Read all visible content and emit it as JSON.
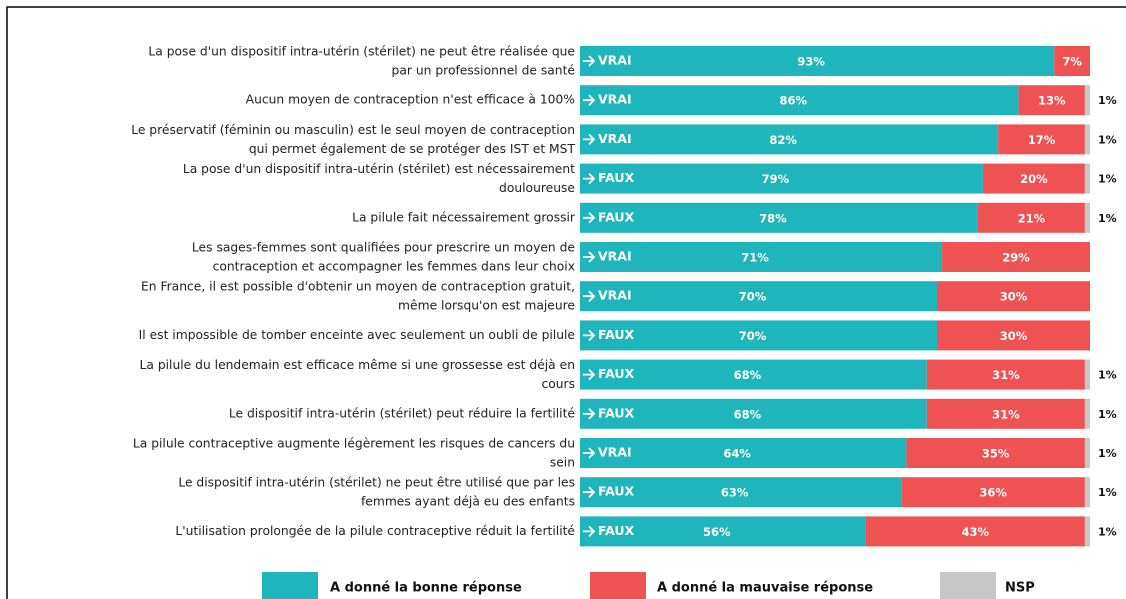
{
  "chart_data": {
    "type": "stacked-bar-horizontal",
    "categories": [
      [
        "La pose d'un dispositif intra-utérin (stérilet) ne peut être réalisée que",
        "par un professionnel de santé"
      ],
      [
        "Aucun moyen de contraception n'est efficace à 100%"
      ],
      [
        "Le préservatif (féminin ou masculin) est le seul moyen de contraception",
        "qui permet également de se protéger des IST et MST"
      ],
      [
        "La pose d'un dispositif intra-utérin (stérilet) est nécessairement",
        "douloureuse"
      ],
      [
        "La pilule fait nécessairement grossir"
      ],
      [
        "Les sages-femmes sont qualifiées pour prescrire un moyen de",
        "contraception et accompagner les femmes dans leur choix"
      ],
      [
        "En France, il est possible d'obtenir un moyen de contraception gratuit,",
        "même lorsqu'on est majeure"
      ],
      [
        "Il est impossible de tomber enceinte avec seulement un oubli de pilule"
      ],
      [
        "La pilule du lendemain est efficace même si une grossesse est déjà en",
        "cours"
      ],
      [
        "Le dispositif intra-utérin (stérilet) peut réduire la fertilité"
      ],
      [
        "La pilule contraceptive augmente légèrement les risques de cancers du",
        "sein"
      ],
      [
        "Le dispositif intra-utérin (stérilet) ne peut être utilisé que par les",
        "femmes ayant déjà eu des enfants"
      ],
      [
        "L'utilisation prolongée de la pilule contraceptive réduit la fertilité"
      ]
    ],
    "answers": [
      "VRAI",
      "VRAI",
      "VRAI",
      "FAUX",
      "FAUX",
      "VRAI",
      "VRAI",
      "FAUX",
      "FAUX",
      "FAUX",
      "VRAI",
      "FAUX",
      "FAUX"
    ],
    "xlim": [
      0,
      100
    ],
    "series": [
      {
        "name": "A donné la bonne réponse",
        "color": "#1fb5bd",
        "values": [
          93,
          86,
          82,
          79,
          78,
          71,
          70,
          70,
          68,
          68,
          64,
          63,
          56
        ],
        "value_labels": [
          "93%",
          "86%",
          "82%",
          "79%",
          "78%",
          "71%",
          "70%",
          "70%",
          "68%",
          "68%",
          "64%",
          "63%",
          "56%"
        ]
      },
      {
        "name": "A donné la mauvaise réponse",
        "color": "#ee5252",
        "values": [
          7,
          13,
          17,
          20,
          21,
          29,
          30,
          30,
          31,
          31,
          35,
          36,
          43
        ],
        "value_labels": [
          "7%",
          "13%",
          "17%",
          "20%",
          "21%",
          "29%",
          "30%",
          "30%",
          "31%",
          "31%",
          "35%",
          "36%",
          "43%"
        ]
      },
      {
        "name": "NSP",
        "color": "#c8c8c8",
        "values": [
          null,
          1,
          1,
          1,
          1,
          null,
          null,
          null,
          1,
          1,
          1,
          1,
          1
        ],
        "value_labels": [
          null,
          "1%",
          "1%",
          "1%",
          "1%",
          null,
          null,
          null,
          "1%",
          "1%",
          "1%",
          "1%",
          "1%"
        ]
      }
    ]
  }
}
